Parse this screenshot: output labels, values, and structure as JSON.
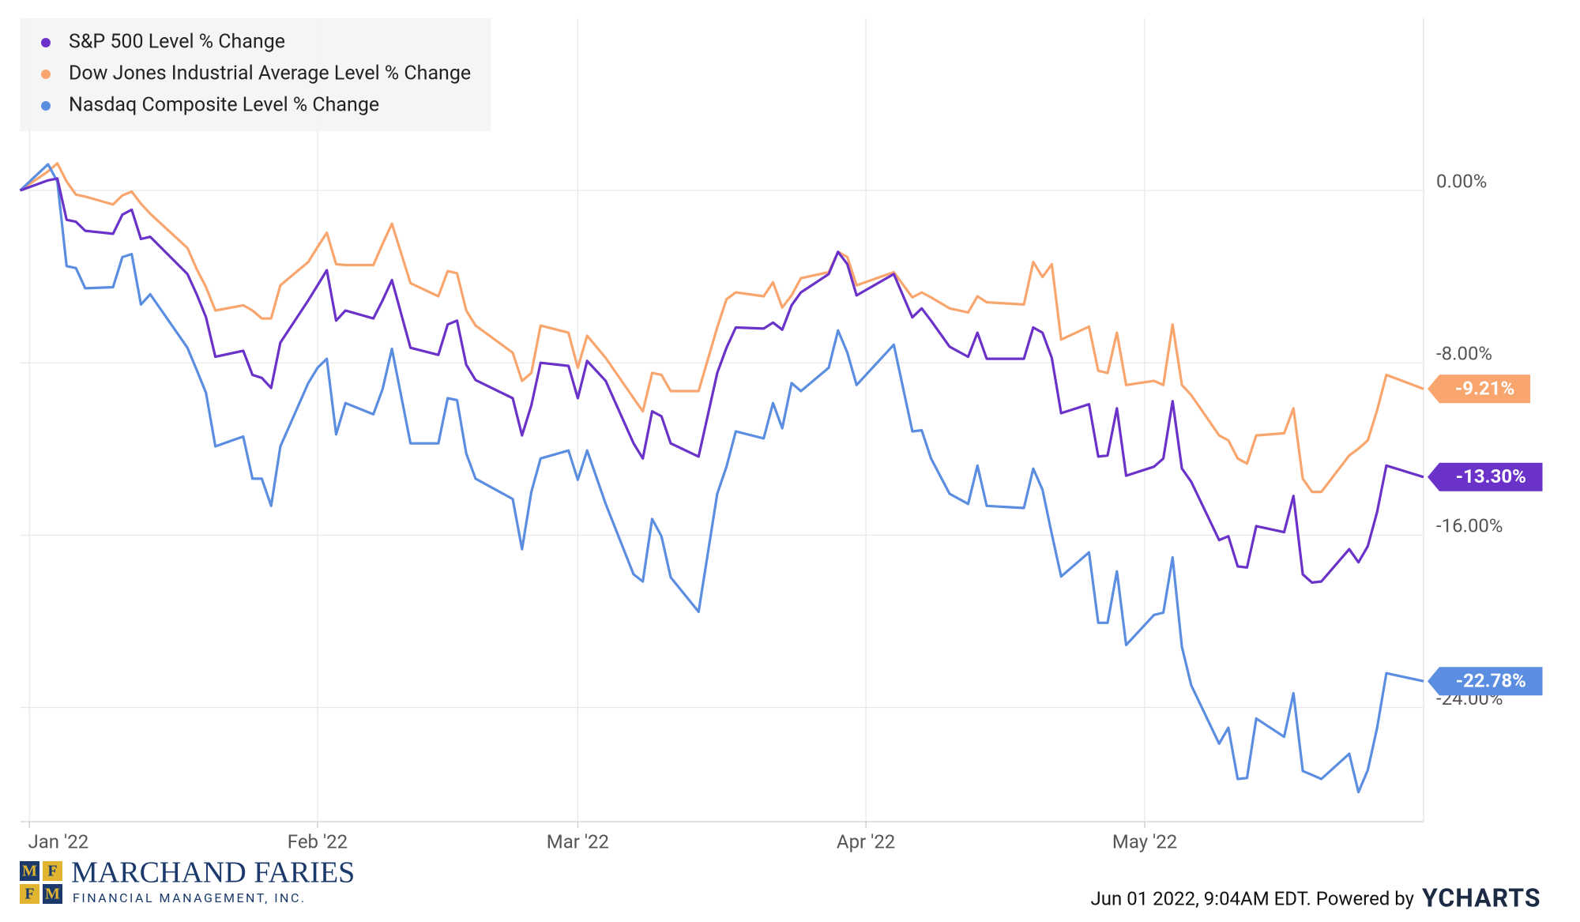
{
  "chart_data": {
    "type": "line",
    "x": [
      -1,
      2,
      3,
      4,
      5,
      6,
      9,
      10,
      11,
      12,
      13,
      17,
      18,
      19,
      20,
      23,
      24,
      25,
      26,
      27,
      30,
      31,
      32,
      33,
      34,
      37,
      38,
      39,
      41,
      44,
      45,
      46,
      47,
      48,
      52,
      53,
      54,
      55,
      58,
      59,
      60,
      62,
      65,
      66,
      67,
      68,
      69,
      72,
      74,
      75,
      76,
      79,
      80,
      81,
      82,
      83,
      86,
      87,
      88,
      89,
      93,
      95,
      96,
      97,
      99,
      101,
      102,
      103,
      107,
      108,
      109,
      110,
      111,
      114,
      115,
      116,
      117,
      118,
      121,
      122,
      123,
      124,
      125,
      128,
      129,
      130,
      131,
      132,
      135,
      136,
      137,
      138,
      139,
      142,
      143,
      144,
      145,
      146,
      150
    ],
    "xlim": [
      -1,
      150
    ],
    "xticks": [
      {
        "value": 0,
        "label": "Jan '22"
      },
      {
        "value": 31,
        "label": "Feb '22"
      },
      {
        "value": 59,
        "label": "Mar '22"
      },
      {
        "value": 90,
        "label": "Apr '22"
      },
      {
        "value": 120,
        "label": "May '22"
      }
    ],
    "ylim": [
      -29.3,
      8
    ],
    "yticks": [
      {
        "value": 0,
        "label": "0.00%"
      },
      {
        "value": -8,
        "label": "-8.00%"
      },
      {
        "value": -16,
        "label": "-16.00%"
      },
      {
        "value": -24,
        "label": "-24.00%"
      }
    ],
    "grid": true,
    "legend": "top-left",
    "series": [
      {
        "name": "S&P 500 Level % Change",
        "color": "#6a32c9",
        "values": [
          0,
          0.47,
          0.56,
          -1.36,
          -1.45,
          -1.87,
          -2.01,
          -1.12,
          -0.89,
          -2.25,
          -2.15,
          -3.88,
          -4.82,
          -5.89,
          -7.72,
          -7.44,
          -8.56,
          -8.7,
          -9.17,
          -7.06,
          -5.1,
          -4.4,
          -3.7,
          -6.04,
          -5.57,
          -5.94,
          -5.1,
          -4.16,
          -7.3,
          -7.63,
          -6.22,
          -6.04,
          -8.09,
          -8.8,
          -9.64,
          -11.37,
          -9.97,
          -8.0,
          -8.14,
          -9.64,
          -7.91,
          -8.84,
          -11.74,
          -12.44,
          -10.25,
          -10.48,
          -11.74,
          -12.35,
          -8.47,
          -7.3,
          -6.36,
          -6.41,
          -6.13,
          -6.46,
          -5.33,
          -4.73,
          -3.88,
          -2.85,
          -3.42,
          -4.87,
          -3.88,
          -5.89,
          -5.47,
          -6.04,
          -7.25,
          -7.72,
          -6.6,
          -7.81,
          -7.81,
          -6.36,
          -6.6,
          -7.77,
          -10.34,
          -9.92,
          -12.35,
          -12.3,
          -10.11,
          -13.24,
          -12.82,
          -12.44,
          -9.78,
          -12.91,
          -13.52,
          -16.23,
          -16.05,
          -17.45,
          -17.5,
          -15.58,
          -15.86,
          -14.18,
          -17.82,
          -18.2,
          -18.15,
          -16.65,
          -17.26,
          -16.51,
          -14.92,
          -12.77,
          -13.3
        ],
        "value_labels": [
          null,
          null,
          null,
          null,
          null,
          null,
          null,
          null,
          null,
          null,
          null,
          null,
          null,
          null,
          null,
          null,
          null,
          null,
          null,
          null,
          null,
          null,
          null,
          null,
          null,
          null,
          null,
          null,
          null,
          null,
          null,
          null,
          null,
          null,
          null,
          null,
          null,
          null,
          null,
          null,
          null,
          null,
          null,
          null,
          null,
          null,
          null,
          null,
          null,
          null,
          null,
          null,
          null,
          null,
          null,
          null,
          null,
          null,
          null,
          null,
          null,
          null,
          null,
          null,
          null,
          null,
          null,
          null,
          null,
          null,
          null,
          null,
          null,
          null,
          null,
          null,
          null,
          null,
          null,
          null,
          null,
          null,
          null,
          null,
          null,
          null,
          null,
          null,
          null,
          null,
          null,
          null,
          null,
          null,
          null,
          null,
          null,
          null,
          "-13.30%"
        ]
      },
      {
        "name": "Dow Jones Industrial Average Level % Change",
        "color": "#f8a56e",
        "values": [
          0,
          0.89,
          1.26,
          0.42,
          -0.19,
          -0.28,
          -0.65,
          -0.23,
          -0.05,
          -0.61,
          -1.08,
          -2.67,
          -3.65,
          -4.49,
          -5.57,
          -5.33,
          -5.57,
          -5.94,
          -5.94,
          -4.4,
          -3.32,
          -2.62,
          -1.96,
          -3.42,
          -3.46,
          -3.46,
          -2.48,
          -1.54,
          -4.3,
          -4.91,
          -3.74,
          -3.84,
          -5.57,
          -6.27,
          -7.53,
          -8.84,
          -8.47,
          -6.27,
          -6.6,
          -8.23,
          -6.74,
          -7.77,
          -9.64,
          -10.25,
          -8.47,
          -8.56,
          -9.31,
          -9.31,
          -6.36,
          -5.05,
          -4.73,
          -4.91,
          -4.26,
          -5.43,
          -4.87,
          -4.07,
          -3.79,
          -2.85,
          -3.09,
          -4.4,
          -3.79,
          -4.96,
          -4.73,
          -4.96,
          -5.47,
          -5.66,
          -4.91,
          -5.19,
          -5.29,
          -3.32,
          -4.02,
          -3.42,
          -6.92,
          -6.32,
          -8.37,
          -8.47,
          -6.6,
          -9.03,
          -8.84,
          -9.03,
          -6.22,
          -9.03,
          -9.5,
          -11.37,
          -11.6,
          -12.44,
          -12.68,
          -11.37,
          -11.27,
          -10.11,
          -13.38,
          -13.99,
          -13.99,
          -12.3,
          -11.98,
          -11.6,
          -10.2,
          -8.56,
          -9.21
        ],
        "value_labels": [
          null,
          null,
          null,
          null,
          null,
          null,
          null,
          null,
          null,
          null,
          null,
          null,
          null,
          null,
          null,
          null,
          null,
          null,
          null,
          null,
          null,
          null,
          null,
          null,
          null,
          null,
          null,
          null,
          null,
          null,
          null,
          null,
          null,
          null,
          null,
          null,
          null,
          null,
          null,
          null,
          null,
          null,
          null,
          null,
          null,
          null,
          null,
          null,
          null,
          null,
          null,
          null,
          null,
          null,
          null,
          null,
          null,
          null,
          null,
          null,
          null,
          null,
          null,
          null,
          null,
          null,
          null,
          null,
          null,
          null,
          null,
          null,
          null,
          null,
          null,
          null,
          null,
          null,
          null,
          null,
          null,
          null,
          null,
          null,
          null,
          null,
          null,
          null,
          null,
          null,
          null,
          null,
          null,
          null,
          null,
          null,
          null,
          null,
          "-9.21%"
        ]
      },
      {
        "name": "Nasdaq Composite Level % Change",
        "color": "#5b8de0",
        "values": [
          0,
          1.22,
          0.42,
          -3.51,
          -3.6,
          -4.54,
          -4.49,
          -3.09,
          -2.95,
          -5.29,
          -4.82,
          -7.3,
          -8.33,
          -9.4,
          -11.88,
          -11.42,
          -13.38,
          -13.38,
          -14.64,
          -11.88,
          -8.94,
          -8.23,
          -7.81,
          -11.32,
          -9.87,
          -10.39,
          -9.22,
          -7.35,
          -11.74,
          -11.74,
          -9.64,
          -9.73,
          -12.21,
          -13.38,
          -14.32,
          -16.65,
          -13.99,
          -12.44,
          -12.07,
          -13.43,
          -12.07,
          -14.55,
          -17.82,
          -18.15,
          -15.25,
          -16.05,
          -17.96,
          -19.56,
          -14.08,
          -12.82,
          -11.18,
          -11.51,
          -9.87,
          -11.04,
          -8.94,
          -9.31,
          -8.23,
          -6.5,
          -7.53,
          -9.03,
          -7.16,
          -11.18,
          -11.13,
          -12.44,
          -14.08,
          -14.55,
          -12.77,
          -14.64,
          -14.74,
          -12.91,
          -13.89,
          -15.95,
          -17.92,
          -16.8,
          -20.07,
          -20.07,
          -17.68,
          -21.1,
          -19.7,
          -19.6,
          -17.03,
          -21.19,
          -22.97,
          -25.68,
          -24.94,
          -27.32,
          -27.27,
          -24.51,
          -25.36,
          -23.34,
          -26.95,
          -27.13,
          -27.32,
          -26.15,
          -27.93,
          -26.9,
          -24.94,
          -22.41,
          -22.78
        ],
        "value_labels": [
          null,
          null,
          null,
          null,
          null,
          null,
          null,
          null,
          null,
          null,
          null,
          null,
          null,
          null,
          null,
          null,
          null,
          null,
          null,
          null,
          null,
          null,
          null,
          null,
          null,
          null,
          null,
          null,
          null,
          null,
          null,
          null,
          null,
          null,
          null,
          null,
          null,
          null,
          null,
          null,
          null,
          null,
          null,
          null,
          null,
          null,
          null,
          null,
          null,
          null,
          null,
          null,
          null,
          null,
          null,
          null,
          null,
          null,
          null,
          null,
          null,
          null,
          null,
          null,
          null,
          null,
          null,
          null,
          null,
          null,
          null,
          null,
          null,
          null,
          null,
          null,
          null,
          null,
          null,
          null,
          null,
          null,
          null,
          null,
          null,
          null,
          null,
          null,
          null,
          null,
          null,
          null,
          null,
          null,
          null,
          null,
          null,
          null,
          "-22.78%"
        ]
      }
    ]
  },
  "footer": {
    "logo_letters": [
      "M",
      "F",
      "F",
      "M"
    ],
    "company": "MARCHAND FARIES",
    "tagline": "FINANCIAL MANAGEMENT, INC.",
    "timestamp": "Jun 01 2022, 9:04AM EDT. Powered by",
    "brand": "YCHARTS"
  }
}
